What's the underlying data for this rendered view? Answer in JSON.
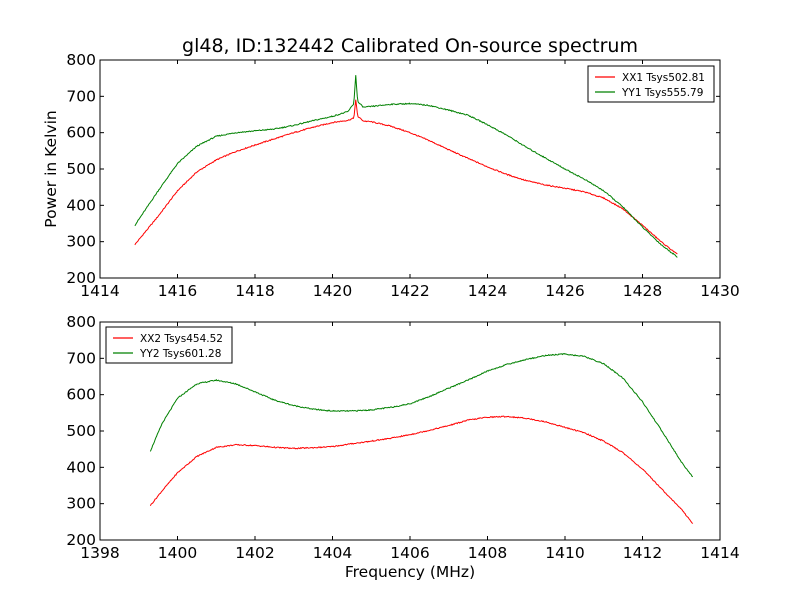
{
  "chart_data": [
    {
      "type": "line",
      "title": "gl48, ID:132442 Calibrated On-source spectrum",
      "xlabel": "",
      "ylabel": "Power in Kelvin",
      "xlim": [
        1414,
        1430
      ],
      "ylim": [
        200,
        800
      ],
      "xticks": [
        1414,
        1416,
        1418,
        1420,
        1422,
        1424,
        1426,
        1428,
        1430
      ],
      "yticks": [
        200,
        300,
        400,
        500,
        600,
        700,
        800
      ],
      "legend_position": "top-right",
      "grid": false,
      "series": [
        {
          "name": "XX1 Tsys502.81",
          "color": "#ff0000",
          "x": [
            1414.9,
            1415.5,
            1416.0,
            1416.5,
            1417.0,
            1417.5,
            1418.0,
            1418.5,
            1419.0,
            1419.5,
            1420.0,
            1420.4,
            1420.55,
            1420.6,
            1420.65,
            1420.8,
            1421.0,
            1421.5,
            1422.0,
            1422.5,
            1423.0,
            1423.5,
            1424.0,
            1424.5,
            1425.0,
            1425.5,
            1426.0,
            1426.5,
            1427.0,
            1427.5,
            1428.0,
            1428.5,
            1428.9
          ],
          "y": [
            292,
            370,
            440,
            492,
            525,
            548,
            566,
            583,
            600,
            615,
            628,
            634,
            640,
            690,
            645,
            632,
            630,
            618,
            600,
            578,
            553,
            529,
            506,
            485,
            468,
            456,
            447,
            437,
            420,
            390,
            345,
            298,
            265
          ]
        },
        {
          "name": "YY1 Tsys555.79",
          "color": "#008000",
          "x": [
            1414.9,
            1415.5,
            1416.0,
            1416.5,
            1417.0,
            1417.5,
            1418.0,
            1418.5,
            1419.0,
            1419.5,
            1420.0,
            1420.4,
            1420.55,
            1420.6,
            1420.65,
            1420.8,
            1421.0,
            1421.5,
            1422.0,
            1422.5,
            1423.0,
            1423.5,
            1424.0,
            1424.5,
            1425.0,
            1425.5,
            1426.0,
            1426.5,
            1427.0,
            1427.5,
            1428.0,
            1428.5,
            1428.9
          ],
          "y": [
            345,
            440,
            515,
            563,
            590,
            600,
            605,
            610,
            620,
            633,
            645,
            658,
            680,
            758,
            685,
            670,
            672,
            678,
            680,
            675,
            662,
            648,
            622,
            593,
            560,
            530,
            500,
            472,
            440,
            395,
            340,
            290,
            258
          ]
        }
      ]
    },
    {
      "type": "line",
      "title": "",
      "xlabel": "Frequency (MHz)",
      "ylabel": "",
      "xlim": [
        1398,
        1414
      ],
      "ylim": [
        200,
        800
      ],
      "xticks": [
        1398,
        1400,
        1402,
        1404,
        1406,
        1408,
        1410,
        1412,
        1414
      ],
      "yticks": [
        200,
        300,
        400,
        500,
        600,
        700,
        800
      ],
      "legend_position": "top-left",
      "grid": false,
      "series": [
        {
          "name": "XX2 Tsys454.52",
          "color": "#ff0000",
          "x": [
            1399.3,
            1399.6,
            1400.0,
            1400.5,
            1401.0,
            1401.5,
            1402.0,
            1402.5,
            1403.0,
            1403.5,
            1404.0,
            1404.5,
            1405.0,
            1405.5,
            1406.0,
            1406.5,
            1407.0,
            1407.5,
            1408.0,
            1408.5,
            1409.0,
            1409.5,
            1410.0,
            1410.5,
            1411.0,
            1411.5,
            1412.0,
            1412.5,
            1413.0,
            1413.3
          ],
          "y": [
            295,
            335,
            385,
            430,
            455,
            462,
            460,
            455,
            452,
            454,
            457,
            465,
            472,
            480,
            490,
            502,
            515,
            530,
            538,
            540,
            535,
            525,
            510,
            495,
            472,
            440,
            395,
            340,
            285,
            245
          ]
        },
        {
          "name": "YY2 Tsys601.28",
          "color": "#008000",
          "x": [
            1399.3,
            1399.6,
            1400.0,
            1400.5,
            1401.0,
            1401.5,
            1402.0,
            1402.5,
            1403.0,
            1403.5,
            1404.0,
            1404.5,
            1405.0,
            1405.5,
            1406.0,
            1406.5,
            1407.0,
            1407.5,
            1408.0,
            1408.5,
            1409.0,
            1409.5,
            1410.0,
            1410.5,
            1411.0,
            1411.5,
            1412.0,
            1412.5,
            1413.0,
            1413.3
          ],
          "y": [
            445,
            520,
            590,
            630,
            640,
            630,
            608,
            585,
            570,
            560,
            555,
            555,
            558,
            565,
            575,
            595,
            618,
            640,
            665,
            683,
            697,
            708,
            712,
            705,
            685,
            645,
            580,
            500,
            415,
            373
          ]
        }
      ]
    }
  ]
}
